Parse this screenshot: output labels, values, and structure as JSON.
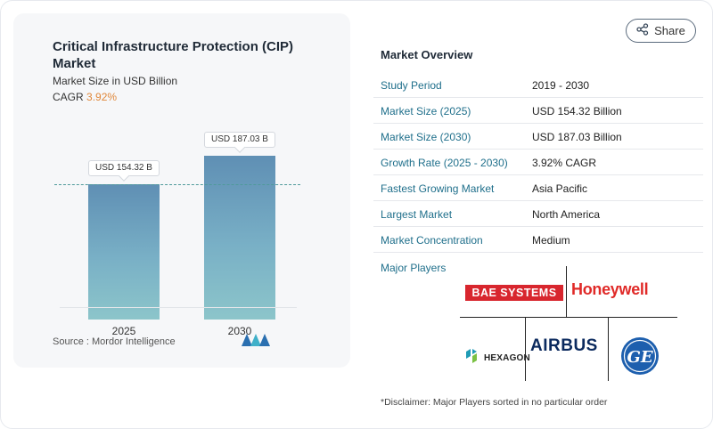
{
  "chart": {
    "title": "Critical Infrastructure Protection (CIP) Market",
    "subtitle": "Market Size in USD Billion",
    "cagr_label": "CAGR",
    "cagr_value": "3.92%",
    "source": "Source :  Mordor Intelligence"
  },
  "chart_data": {
    "type": "bar",
    "categories": [
      "2025",
      "2030"
    ],
    "values": [
      154.32,
      187.03
    ],
    "data_labels": [
      "USD 154.32 B",
      "USD 187.03 B"
    ],
    "title": "Critical Infrastructure Protection (CIP) Market",
    "ylabel": "Market Size in USD Billion",
    "grid": false,
    "reference_line": "dashed line at 2025 value"
  },
  "header": {
    "share_label": "Share"
  },
  "overview": {
    "title": "Market Overview",
    "rows": [
      {
        "key": "Study Period",
        "value": "2019 - 2030"
      },
      {
        "key": "Market Size (2025)",
        "value": "USD 154.32 Billion"
      },
      {
        "key": "Market Size (2030)",
        "value": "USD 187.03 Billion"
      },
      {
        "key": "Growth Rate (2025 - 2030)",
        "value": "3.92% CAGR"
      },
      {
        "key": "Fastest Growing Market",
        "value": "Asia Pacific"
      },
      {
        "key": "Largest Market",
        "value": "North America"
      },
      {
        "key": "Market Concentration",
        "value": "Medium"
      }
    ]
  },
  "players": {
    "title": "Major Players",
    "bae": "BAE SYSTEMS",
    "honeywell": "Honeywell",
    "hexagon": "HEXAGON",
    "airbus": "AIRBUS",
    "ge": "GE"
  },
  "disclaimer": "*Disclaimer: Major Players sorted in no particular order",
  "colors": {
    "accent_teal": "#1f6f8b",
    "cagr_orange": "#e0883b",
    "bae_red": "#d8262e",
    "honeywell_red": "#e02a28",
    "airbus_navy": "#0b2a5e",
    "ge_blue": "#1d5fae"
  }
}
